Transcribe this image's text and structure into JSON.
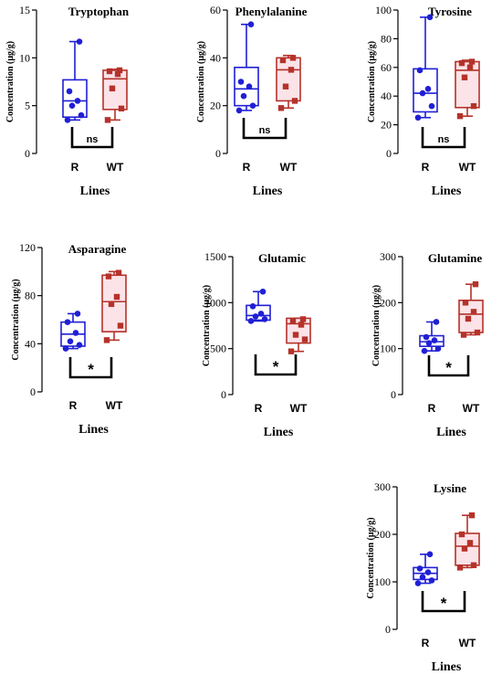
{
  "colors": {
    "r": "#1f1fd6",
    "wt": "#b5322a",
    "wt_fill": "#fbe3e8",
    "axis": "#000000"
  },
  "chart_data": [
    {
      "type": "box",
      "title": "Tryptophan",
      "ylabel": "Concentration (μg/g)",
      "xlabel": "Lines",
      "categories": [
        "R",
        "WT"
      ],
      "ylim": [
        0,
        15
      ],
      "yticks": [
        0,
        5,
        10,
        15
      ],
      "significance": "ns",
      "series": [
        {
          "category": "R",
          "min": 3.5,
          "q1": 3.8,
          "median": 5.5,
          "q3": 7.7,
          "max": 11.7,
          "points": [
            3.5,
            4.0,
            5.0,
            5.5,
            6.5,
            11.7
          ]
        },
        {
          "category": "WT",
          "min": 3.5,
          "q1": 4.6,
          "median": 7.8,
          "q3": 8.7,
          "max": 8.8,
          "points": [
            3.5,
            4.7,
            6.8,
            8.3,
            8.6,
            8.7
          ]
        }
      ]
    },
    {
      "type": "box",
      "title": "Phenylalanine",
      "ylabel": "Concentration (μg/g)",
      "xlabel": "Lines",
      "categories": [
        "R",
        "WT"
      ],
      "ylim": [
        0,
        60
      ],
      "yticks": [
        0,
        20,
        40,
        60
      ],
      "significance": "ns",
      "series": [
        {
          "category": "R",
          "min": 18,
          "q1": 20,
          "median": 27,
          "q3": 36,
          "max": 54,
          "points": [
            18,
            20,
            24,
            28,
            30,
            54
          ]
        },
        {
          "category": "WT",
          "min": 19,
          "q1": 22,
          "median": 35,
          "q3": 40,
          "max": 41,
          "points": [
            19,
            22,
            28,
            35,
            39,
            40
          ]
        }
      ]
    },
    {
      "type": "box",
      "title": "Tyrosine",
      "ylabel": "Concentration (μg/g)",
      "xlabel": "Lines",
      "categories": [
        "R",
        "WT"
      ],
      "ylim": [
        0,
        100
      ],
      "yticks": [
        0,
        20,
        40,
        60,
        80,
        100
      ],
      "significance": "ns",
      "series": [
        {
          "category": "R",
          "min": 25,
          "q1": 29,
          "median": 42,
          "q3": 59,
          "max": 95,
          "points": [
            25,
            33,
            42,
            45,
            58,
            95
          ]
        },
        {
          "category": "WT",
          "min": 26,
          "q1": 32,
          "median": 58,
          "q3": 64,
          "max": 65,
          "points": [
            26,
            33,
            53,
            60,
            63,
            64
          ]
        }
      ]
    },
    {
      "type": "box",
      "title": "Asparagine",
      "ylabel": "Concentration (μg/g)",
      "xlabel": "Lines",
      "categories": [
        "R",
        "WT"
      ],
      "ylim": [
        0,
        120
      ],
      "yticks": [
        0,
        40,
        80,
        120
      ],
      "significance": "*",
      "series": [
        {
          "category": "R",
          "min": 36,
          "q1": 38,
          "median": 48,
          "q3": 58,
          "max": 65,
          "points": [
            36,
            39,
            42,
            49,
            58,
            65
          ]
        },
        {
          "category": "WT",
          "min": 43,
          "q1": 50,
          "median": 75,
          "q3": 97,
          "max": 100,
          "points": [
            43,
            55,
            73,
            79,
            96,
            99
          ]
        }
      ]
    },
    {
      "type": "box",
      "title": "Glutamic",
      "ylabel": "Concentration (μg/g)",
      "xlabel": "Lines",
      "categories": [
        "R",
        "WT"
      ],
      "ylim": [
        0,
        1500
      ],
      "yticks": [
        0,
        500,
        1000,
        1500
      ],
      "significance": "*",
      "series": [
        {
          "category": "R",
          "min": 800,
          "q1": 810,
          "median": 860,
          "q3": 970,
          "max": 1120,
          "points": [
            800,
            820,
            850,
            880,
            960,
            1120
          ]
        },
        {
          "category": "WT",
          "min": 470,
          "q1": 560,
          "median": 770,
          "q3": 830,
          "max": 830,
          "points": [
            470,
            600,
            650,
            760,
            800,
            820
          ]
        }
      ]
    },
    {
      "type": "box",
      "title": "Glutamine",
      "ylabel": "Concentration (μg/g)",
      "xlabel": "Lines",
      "categories": [
        "R",
        "WT"
      ],
      "ylim": [
        0,
        300
      ],
      "yticks": [
        0,
        100,
        200,
        300
      ],
      "significance": "*",
      "series": [
        {
          "category": "R",
          "min": 95,
          "q1": 105,
          "median": 115,
          "q3": 128,
          "max": 158,
          "points": [
            95,
            100,
            112,
            118,
            125,
            158
          ]
        },
        {
          "category": "WT",
          "min": 130,
          "q1": 135,
          "median": 175,
          "q3": 205,
          "max": 240,
          "points": [
            130,
            135,
            165,
            180,
            200,
            240
          ]
        }
      ]
    },
    {
      "type": "box",
      "title": "Lysine",
      "ylabel": "Concentration (μg/g)",
      "xlabel": "Lines",
      "categories": [
        "R",
        "WT"
      ],
      "ylim": [
        0,
        300
      ],
      "yticks": [
        0,
        100,
        200,
        300
      ],
      "significance": "*",
      "series": [
        {
          "category": "R",
          "min": 97,
          "q1": 105,
          "median": 118,
          "q3": 130,
          "max": 158,
          "points": [
            97,
            103,
            110,
            120,
            128,
            158
          ]
        },
        {
          "category": "WT",
          "min": 130,
          "q1": 135,
          "median": 175,
          "q3": 202,
          "max": 240,
          "points": [
            130,
            135,
            170,
            182,
            200,
            240
          ]
        }
      ]
    }
  ]
}
